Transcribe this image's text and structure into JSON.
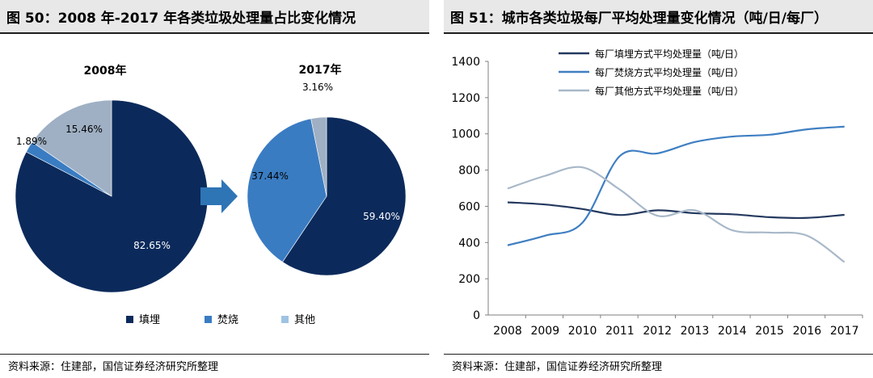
{
  "left": {
    "title": "图 50：2008 年-2017 年各类垃圾处理量占比变化情况",
    "source": "资料来源：住建部，国信证券经济研究所整理"
  },
  "right": {
    "title": "图 51：城市各类垃圾每厂平均处理量变化情况（吨/日/每厂）",
    "source": "资料来源：住建部，国信证券经济研究所整理"
  },
  "chart_data": [
    {
      "type": "pie",
      "title": "2008年",
      "categories": [
        "填埋",
        "焚烧",
        "其他"
      ],
      "values": [
        82.65,
        1.89,
        15.46
      ],
      "labels": [
        "82.65%",
        "1.89%",
        "15.46%"
      ],
      "colors": [
        "#0b2a5b",
        "#3a7cc2",
        "#9fb0c4"
      ]
    },
    {
      "type": "pie",
      "title": "2017年",
      "categories": [
        "填埋",
        "焚烧",
        "其他"
      ],
      "values": [
        59.4,
        37.44,
        3.16
      ],
      "labels": [
        "59.40%",
        "37.44%",
        "3.16%"
      ],
      "colors": [
        "#0b2a5b",
        "#3a7cc2",
        "#9fb0c4"
      ],
      "legend": {
        "position": "bottom",
        "items": [
          "填埋",
          "焚烧",
          "其他"
        ],
        "colors": [
          "#0b2a5b",
          "#3a7cc2",
          "#9fc3e3"
        ]
      }
    },
    {
      "type": "line",
      "x": [
        "2008",
        "2009",
        "2010",
        "2011",
        "2012",
        "2013",
        "2014",
        "2015",
        "2016",
        "2017"
      ],
      "ylim": [
        0,
        1400
      ],
      "yticks": [
        0,
        200,
        400,
        600,
        800,
        1000,
        1200,
        1400
      ],
      "grid": false,
      "legend_position": "top-center",
      "series": [
        {
          "name": "每厂填埋方式平均处理量（吨/日）",
          "color": "#24395f",
          "values": [
            622,
            610,
            585,
            552,
            578,
            562,
            556,
            540,
            536,
            553
          ]
        },
        {
          "name": "每厂焚烧方式平均处理量（吨/日）",
          "color": "#3f7fc2",
          "values": [
            385,
            438,
            510,
            878,
            892,
            955,
            985,
            995,
            1025,
            1040
          ]
        },
        {
          "name": "每厂其他方式平均处理量（吨/日）",
          "color": "#a8b8c8",
          "values": [
            698,
            768,
            815,
            692,
            548,
            578,
            468,
            455,
            438,
            292
          ]
        }
      ]
    }
  ]
}
